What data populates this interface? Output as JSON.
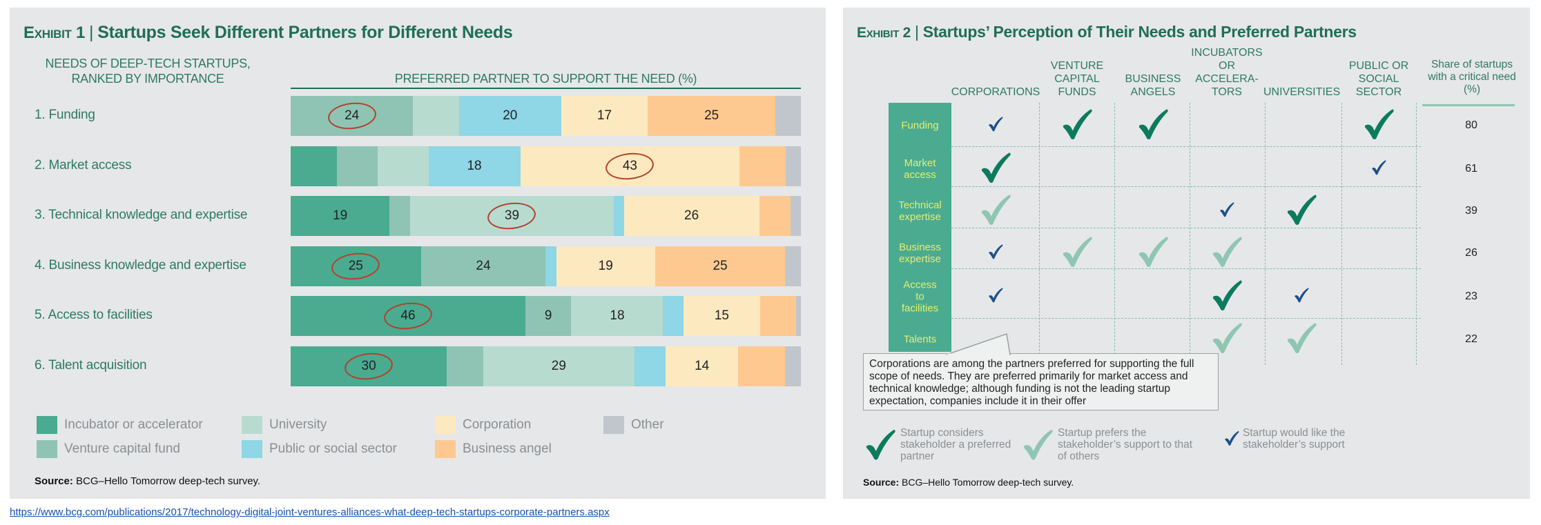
{
  "exhibit1": {
    "exhibit_label": "Exhibit 1",
    "title": "Startups Seek Different Partners for Different Needs",
    "left_header": "NEEDS OF DEEP-TECH STARTUPS, RANKED BY IMPORTANCE",
    "right_header": "PREFERRED PARTNER TO SUPPORT THE NEED (%)",
    "source_label": "Source:",
    "source_text": "BCG–Hello Tomorrow deep-tech survey.",
    "legend": [
      {
        "label": "Incubator or accelerator",
        "color": "#4aab91"
      },
      {
        "label": "Venture capital fund",
        "color": "#8fc4b4"
      },
      {
        "label": "University",
        "color": "#b8dbd0"
      },
      {
        "label": "Public or social sector",
        "color": "#8fd6e6"
      },
      {
        "label": "Corporation",
        "color": "#fde9bf"
      },
      {
        "label": "Business angel",
        "color": "#fdc990"
      },
      {
        "label": "Other",
        "color": "#c1c6cc"
      }
    ]
  },
  "chart_data": {
    "type": "bar",
    "orientation": "horizontal-stacked-100",
    "title": "Startups Seek Different Partners for Different Needs",
    "categories": [
      "1. Funding",
      "2. Market access",
      "3. Technical knowledge and expertise",
      "4. Business knowledge and expertise",
      "5. Access to facilities",
      "6. Talent acquisition"
    ],
    "series": [
      {
        "name": "Incubator or accelerator",
        "values": [
          0,
          9,
          19,
          25,
          46,
          30
        ],
        "labeled": [
          false,
          false,
          true,
          true,
          true,
          true
        ]
      },
      {
        "name": "Venture capital fund",
        "values": [
          24,
          8,
          4,
          24,
          9,
          7
        ],
        "labeled": [
          true,
          false,
          false,
          true,
          true,
          false
        ]
      },
      {
        "name": "University",
        "values": [
          9,
          10,
          39,
          0,
          18,
          29
        ],
        "labeled": [
          false,
          false,
          true,
          false,
          true,
          true
        ]
      },
      {
        "name": "Public or social sector",
        "values": [
          20,
          18,
          2,
          2,
          4,
          6
        ],
        "labeled": [
          true,
          true,
          false,
          false,
          false,
          false
        ]
      },
      {
        "name": "Corporation",
        "values": [
          17,
          43,
          26,
          19,
          15,
          14
        ],
        "labeled": [
          true,
          true,
          true,
          true,
          true,
          true
        ]
      },
      {
        "name": "Business angel",
        "values": [
          25,
          9,
          6,
          25,
          7,
          9
        ],
        "labeled": [
          true,
          false,
          false,
          true,
          false,
          false
        ]
      },
      {
        "name": "Other",
        "values": [
          5,
          3,
          2,
          3,
          1,
          3
        ],
        "labeled": [
          false,
          false,
          false,
          false,
          false,
          false
        ]
      }
    ],
    "circled": [
      [
        0,
        1
      ],
      [
        1,
        4
      ],
      [
        2,
        2
      ],
      [
        3,
        0
      ],
      [
        4,
        0
      ],
      [
        5,
        0
      ]
    ],
    "circle_color": "#b2412c",
    "xlim": [
      0,
      100
    ]
  },
  "exhibit2": {
    "exhibit_label": "Exhibit 2",
    "title": "Startups’ Perception of Their Needs and Preferred Partners",
    "columns": [
      "CORPORATIONS",
      "VENTURE CAPITAL FUNDS",
      "BUSINESS ANGELS",
      "INCUBATORS OR ACCELERA- TORS",
      "UNIVERSITIES",
      "PUBLIC OR SOCIAL SECTOR"
    ],
    "share_header": "Share of startups with a critical need (%)",
    "rows": [
      {
        "need": "Funding",
        "share": "80",
        "checks": [
          "blue",
          "dark",
          "dark",
          "",
          "",
          "dark"
        ]
      },
      {
        "need": "Market access",
        "share": "61",
        "checks": [
          "dark",
          "",
          "",
          "",
          "",
          "blue"
        ]
      },
      {
        "need": "Technical expertise",
        "share": "39",
        "checks": [
          "light",
          "",
          "",
          "blue",
          "dark",
          ""
        ]
      },
      {
        "need": "Business expertise",
        "share": "26",
        "checks": [
          "blue",
          "light",
          "light",
          "light",
          "",
          ""
        ]
      },
      {
        "need": "Access to facilities",
        "share": "23",
        "checks": [
          "blue",
          "",
          "",
          "dark",
          "blue",
          ""
        ]
      },
      {
        "need": "Talents",
        "share": "22",
        "checks": [
          "",
          "",
          "",
          "light",
          "light",
          ""
        ]
      }
    ],
    "callout": "Corporations are among the partners preferred for supporting the full scope of needs. They are preferred primarily for market access and technical knowledge; although funding is not the leading startup expectation, companies include it in their offer",
    "legend": [
      {
        "type": "dark",
        "label": "Startup considers stakeholder a preferred partner"
      },
      {
        "type": "light",
        "label": "Startup prefers the stakeholder’s support to that of others"
      },
      {
        "type": "blue",
        "label": "Startup would like the stakeholder’s support"
      }
    ],
    "check_colors": {
      "dark": "#0b7b5e",
      "light": "#8ec6b1",
      "blue": "#1c4f8c"
    },
    "source_label": "Source:",
    "source_text": "BCG–Hello Tomorrow deep-tech survey."
  },
  "url": "https://www.bcg.com/publications/2017/technology-digital-joint-ventures-alliances-what-deep-tech-startups-corporate-partners.aspx"
}
